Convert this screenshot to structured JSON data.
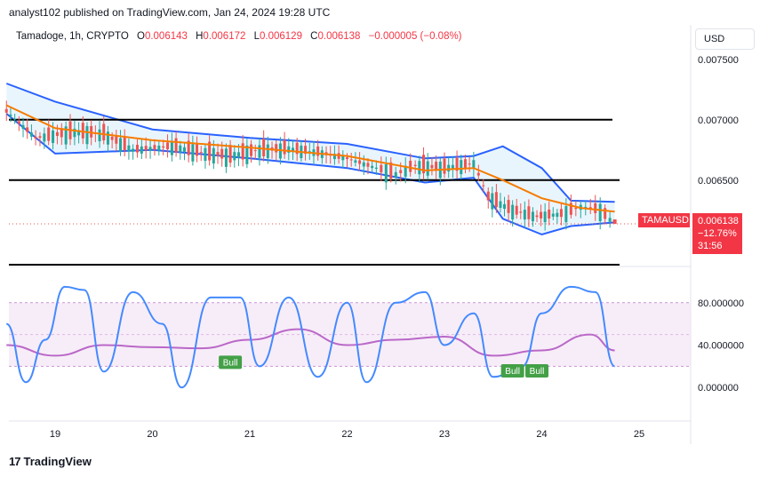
{
  "header": {
    "published": "analyst102 published on TradingView.com, Jan 24, 2024 19:28 UTC"
  },
  "legend": {
    "symbol": "Tamadoge, 1h, CRYPTO",
    "open_label": "O",
    "open": "0.006143",
    "high_label": "H",
    "high": "0.006172",
    "low_label": "L",
    "low": "0.006129",
    "close_label": "C",
    "close": "0.006138",
    "change": "−0.000005 (−0.08%)"
  },
  "currency_button": "USD",
  "price_tag": {
    "symbol": "TAMAUSD",
    "price": "0.006138",
    "change_pct": "−12.76%",
    "countdown": "31:56"
  },
  "footer": {
    "logo_text": "TradingView",
    "logo_icon": "tradingview-logo-icon"
  },
  "colors": {
    "up": "#26a69a",
    "down": "#ef5350",
    "bands": "#2962ff",
    "band_fill": "#e3f2fd",
    "ma": "#f57c00",
    "stoch_k": "#448aff",
    "stoch_d": "#ba68c8",
    "bull": "#43a047"
  },
  "chart_data": [
    {
      "type": "candlestick",
      "title": "",
      "x_tick_labels": [
        "19",
        "20",
        "21",
        "22",
        "23",
        "24",
        "25"
      ],
      "y_tick_labels": [
        "0.007500",
        "0.007000",
        "0.006500"
      ],
      "ylim": [
        0.0058,
        0.00755
      ],
      "horizontal_levels": [
        0.007,
        0.0065,
        0.0058
      ],
      "close_series": [
        {
          "day": 18.5,
          "close": 0.00707
        },
        {
          "day": 18.8,
          "close": 0.00685
        },
        {
          "day": 19.2,
          "close": 0.0069
        },
        {
          "day": 19.5,
          "close": 0.00688
        },
        {
          "day": 19.8,
          "close": 0.00675
        },
        {
          "day": 20.2,
          "close": 0.00678
        },
        {
          "day": 20.5,
          "close": 0.00673
        },
        {
          "day": 20.8,
          "close": 0.0067
        },
        {
          "day": 21.1,
          "close": 0.00675
        },
        {
          "day": 21.4,
          "close": 0.00676
        },
        {
          "day": 21.7,
          "close": 0.00673
        },
        {
          "day": 22.0,
          "close": 0.00668
        },
        {
          "day": 22.3,
          "close": 0.0066
        },
        {
          "day": 22.5,
          "close": 0.00655
        },
        {
          "day": 22.7,
          "close": 0.00662
        },
        {
          "day": 23.0,
          "close": 0.0066
        },
        {
          "day": 23.3,
          "close": 0.00664
        },
        {
          "day": 23.45,
          "close": 0.00636
        },
        {
          "day": 23.7,
          "close": 0.00625
        },
        {
          "day": 23.95,
          "close": 0.0062
        },
        {
          "day": 24.2,
          "close": 0.00622
        },
        {
          "day": 24.4,
          "close": 0.00628
        },
        {
          "day": 24.6,
          "close": 0.00625
        },
        {
          "day": 24.75,
          "close": 0.006138
        }
      ],
      "bollinger_upper": [
        {
          "day": 18.5,
          "value": 0.0073
        },
        {
          "day": 19.0,
          "value": 0.00715
        },
        {
          "day": 20.0,
          "value": 0.00692
        },
        {
          "day": 21.0,
          "value": 0.00685
        },
        {
          "day": 22.0,
          "value": 0.0068
        },
        {
          "day": 22.8,
          "value": 0.00668
        },
        {
          "day": 23.3,
          "value": 0.0067
        },
        {
          "day": 23.6,
          "value": 0.00678
        },
        {
          "day": 24.0,
          "value": 0.0066
        },
        {
          "day": 24.3,
          "value": 0.00633
        },
        {
          "day": 24.75,
          "value": 0.00632
        }
      ],
      "bollinger_lower": [
        {
          "day": 18.5,
          "value": 0.00705
        },
        {
          "day": 19.0,
          "value": 0.00672
        },
        {
          "day": 20.0,
          "value": 0.00675
        },
        {
          "day": 21.0,
          "value": 0.00668
        },
        {
          "day": 22.0,
          "value": 0.0066
        },
        {
          "day": 22.8,
          "value": 0.00648
        },
        {
          "day": 23.3,
          "value": 0.00652
        },
        {
          "day": 23.6,
          "value": 0.00618
        },
        {
          "day": 24.0,
          "value": 0.00605
        },
        {
          "day": 24.3,
          "value": 0.00612
        },
        {
          "day": 24.75,
          "value": 0.00615
        }
      ],
      "moving_average": [
        {
          "day": 18.5,
          "value": 0.00712
        },
        {
          "day": 19.0,
          "value": 0.00693
        },
        {
          "day": 20.0,
          "value": 0.00683
        },
        {
          "day": 21.0,
          "value": 0.00677
        },
        {
          "day": 22.0,
          "value": 0.0067
        },
        {
          "day": 22.8,
          "value": 0.00658
        },
        {
          "day": 23.3,
          "value": 0.0066
        },
        {
          "day": 23.6,
          "value": 0.0065
        },
        {
          "day": 24.0,
          "value": 0.00635
        },
        {
          "day": 24.4,
          "value": 0.00627
        },
        {
          "day": 24.75,
          "value": 0.00624
        }
      ]
    },
    {
      "type": "line",
      "title": "",
      "y_tick_labels": [
        "80.000000",
        "40.000000",
        "0.000000"
      ],
      "ylim": [
        -30,
        110
      ],
      "levels": [
        80,
        20
      ],
      "stoch_k": [
        {
          "day": 18.5,
          "value": 60
        },
        {
          "day": 18.7,
          "value": 5
        },
        {
          "day": 18.9,
          "value": 45
        },
        {
          "day": 19.1,
          "value": 95
        },
        {
          "day": 19.3,
          "value": 92
        },
        {
          "day": 19.5,
          "value": 15
        },
        {
          "day": 19.8,
          "value": 90
        },
        {
          "day": 20.1,
          "value": 60
        },
        {
          "day": 20.3,
          "value": 0
        },
        {
          "day": 20.6,
          "value": 85
        },
        {
          "day": 20.9,
          "value": 85
        },
        {
          "day": 21.1,
          "value": 20
        },
        {
          "day": 21.4,
          "value": 85
        },
        {
          "day": 21.7,
          "value": 10
        },
        {
          "day": 22.0,
          "value": 80
        },
        {
          "day": 22.2,
          "value": 5
        },
        {
          "day": 22.5,
          "value": 80
        },
        {
          "day": 22.8,
          "value": 90
        },
        {
          "day": 23.0,
          "value": 40
        },
        {
          "day": 23.3,
          "value": 70
        },
        {
          "day": 23.5,
          "value": 10
        },
        {
          "day": 23.8,
          "value": 20
        },
        {
          "day": 24.0,
          "value": 70
        },
        {
          "day": 24.3,
          "value": 95
        },
        {
          "day": 24.55,
          "value": 90
        },
        {
          "day": 24.75,
          "value": 20
        }
      ],
      "stoch_d": [
        {
          "day": 18.5,
          "value": 40
        },
        {
          "day": 19.0,
          "value": 30
        },
        {
          "day": 19.5,
          "value": 40
        },
        {
          "day": 20.0,
          "value": 38
        },
        {
          "day": 20.5,
          "value": 37
        },
        {
          "day": 21.0,
          "value": 45
        },
        {
          "day": 21.5,
          "value": 55
        },
        {
          "day": 22.0,
          "value": 40
        },
        {
          "day": 22.5,
          "value": 45
        },
        {
          "day": 23.0,
          "value": 48
        },
        {
          "day": 23.5,
          "value": 30
        },
        {
          "day": 24.0,
          "value": 35
        },
        {
          "day": 24.5,
          "value": 50
        },
        {
          "day": 24.75,
          "value": 35
        }
      ],
      "annotations": [
        {
          "label": "Bull",
          "day": 20.8,
          "value": 30
        },
        {
          "label": "Bull",
          "day": 23.7,
          "value": 22
        },
        {
          "label": "Bull",
          "day": 23.95,
          "value": 22
        }
      ]
    }
  ]
}
